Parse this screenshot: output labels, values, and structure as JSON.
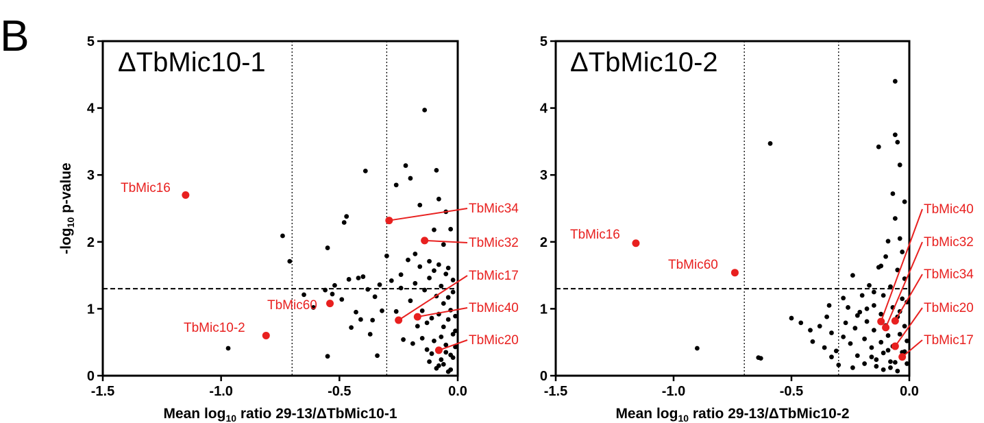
{
  "figure": {
    "panel_letter": "B"
  },
  "colors": {
    "points": "#000000",
    "highlight": "#e8201f",
    "axis": "#000000"
  },
  "chart_data": [
    {
      "type": "scatter",
      "title": "ΔTbMic10-1",
      "xlabel": "Mean log10 ratio 29-13/ΔTbMic10-1",
      "xlabel_parts": {
        "pre": "Mean log",
        "sub": "10",
        "post": " ratio 29-13/ΔTbMic10-1"
      },
      "ylabel": "-log10 p-value",
      "ylabel_parts": {
        "pre": "-log",
        "sub": "10",
        "post": " p-value"
      },
      "xlim": [
        -1.5,
        0.0
      ],
      "ylim": [
        0,
        5
      ],
      "xticks": [
        -1.5,
        -1.0,
        -0.5,
        0.0
      ],
      "xtick_labels": [
        "-1.5",
        "-1.0",
        "-0.5",
        "0.0"
      ],
      "yticks": [
        0,
        1,
        2,
        3,
        4,
        5
      ],
      "ytick_labels": [
        "0",
        "1",
        "2",
        "3",
        "4",
        "5"
      ],
      "threshold_lines": {
        "vertical": [
          -0.7,
          -0.3
        ],
        "horizontal": [
          1.3
        ]
      },
      "highlighted": [
        {
          "label": "TbMic16",
          "x": -1.15,
          "y": 2.7
        },
        {
          "label": "TbMic10-2",
          "x": -0.81,
          "y": 0.6
        },
        {
          "label": "TbMic60",
          "x": -0.54,
          "y": 1.08
        },
        {
          "label": "TbMic34",
          "x": -0.29,
          "y": 2.32
        },
        {
          "label": "TbMic32",
          "x": -0.14,
          "y": 2.02
        },
        {
          "label": "TbMic17",
          "x": -0.25,
          "y": 0.83
        },
        {
          "label": "TbMic40",
          "x": -0.17,
          "y": 0.88
        },
        {
          "label": "TbMic20",
          "x": -0.08,
          "y": 0.38
        }
      ],
      "background_points": [
        [
          -0.97,
          0.41
        ],
        [
          -0.74,
          2.09
        ],
        [
          -0.71,
          1.71
        ],
        [
          -0.65,
          1.21
        ],
        [
          -0.61,
          1.02
        ],
        [
          -0.56,
          1.28
        ],
        [
          -0.55,
          1.91
        ],
        [
          -0.55,
          0.29
        ],
        [
          -0.53,
          1.22
        ],
        [
          -0.52,
          1.35
        ],
        [
          -0.49,
          1.14
        ],
        [
          -0.48,
          2.29
        ],
        [
          -0.47,
          2.38
        ],
        [
          -0.46,
          1.44
        ],
        [
          -0.45,
          0.72
        ],
        [
          -0.43,
          0.95
        ],
        [
          -0.42,
          1.46
        ],
        [
          -0.41,
          0.84
        ],
        [
          -0.4,
          1.48
        ],
        [
          -0.39,
          3.06
        ],
        [
          -0.38,
          1.29
        ],
        [
          -0.37,
          0.62
        ],
        [
          -0.36,
          0.83
        ],
        [
          -0.35,
          1.18
        ],
        [
          -0.34,
          0.3
        ],
        [
          -0.33,
          1.36
        ],
        [
          -0.32,
          0.97
        ],
        [
          -0.3,
          1.79
        ],
        [
          -0.28,
          1.42
        ],
        [
          -0.26,
          2.85
        ],
        [
          -0.24,
          1.31
        ],
        [
          -0.22,
          3.14
        ],
        [
          -0.2,
          2.95
        ],
        [
          -0.18,
          1.82
        ],
        [
          -0.16,
          2.55
        ],
        [
          -0.14,
          3.97
        ],
        [
          -0.12,
          1.71
        ],
        [
          -0.1,
          2.18
        ],
        [
          -0.09,
          3.07
        ],
        [
          -0.08,
          2.64
        ],
        [
          -0.06,
          1.96
        ],
        [
          -0.05,
          2.45
        ],
        [
          -0.04,
          1.61
        ],
        [
          -0.03,
          2.19
        ],
        [
          -0.02,
          1.43
        ],
        [
          -0.01,
          0.67
        ],
        [
          -0.26,
          0.96
        ],
        [
          -0.24,
          1.51
        ],
        [
          -0.23,
          0.54
        ],
        [
          -0.21,
          1.73
        ],
        [
          -0.2,
          1.12
        ],
        [
          -0.19,
          0.48
        ],
        [
          -0.18,
          1.38
        ],
        [
          -0.17,
          0.74
        ],
        [
          -0.16,
          1.63
        ],
        [
          -0.15,
          0.97
        ],
        [
          -0.14,
          1.28
        ],
        [
          -0.13,
          0.39
        ],
        [
          -0.12,
          1.46
        ],
        [
          -0.11,
          0.86
        ],
        [
          -0.1,
          1.57
        ],
        [
          -0.1,
          0.52
        ],
        [
          -0.09,
          1.19
        ],
        [
          -0.08,
          0.92
        ],
        [
          -0.08,
          1.66
        ],
        [
          -0.07,
          0.24
        ],
        [
          -0.07,
          1.34
        ],
        [
          -0.06,
          0.73
        ],
        [
          -0.06,
          1.08
        ],
        [
          -0.05,
          0.46
        ],
        [
          -0.05,
          1.52
        ],
        [
          -0.04,
          0.84
        ],
        [
          -0.04,
          1.17
        ],
        [
          -0.03,
          0.31
        ],
        [
          -0.03,
          0.98
        ],
        [
          -0.02,
          0.62
        ],
        [
          -0.02,
          1.25
        ],
        [
          -0.01,
          0.43
        ],
        [
          -0.01,
          0.89
        ],
        [
          -0.06,
          0.17
        ],
        [
          -0.09,
          0.11
        ],
        [
          -0.12,
          0.21
        ],
        [
          -0.03,
          0.09
        ],
        [
          -0.15,
          0.56
        ],
        [
          -0.11,
          0.33
        ],
        [
          -0.04,
          0.06
        ],
        [
          -0.07,
          0.58
        ],
        [
          -0.13,
          0.79
        ],
        [
          -0.02,
          0.27
        ],
        [
          -0.05,
          0.35
        ],
        [
          -0.08,
          0.15
        ]
      ]
    },
    {
      "type": "scatter",
      "title": "ΔTbMic10-2",
      "xlabel": "Mean log10 ratio 29-13/ΔTbMic10-2",
      "xlabel_parts": {
        "pre": "Mean log",
        "sub": "10",
        "post": " ratio 29-13/ΔTbMic10-2"
      },
      "ylabel": "",
      "xlim": [
        -1.5,
        0.0
      ],
      "ylim": [
        0,
        5
      ],
      "xticks": [
        -1.5,
        -1.0,
        -0.5,
        0.0
      ],
      "xtick_labels": [
        "-1.5",
        "-1.0",
        "-0.5",
        "0.0"
      ],
      "yticks": [
        0,
        1,
        2,
        3,
        4,
        5
      ],
      "ytick_labels": [
        "0",
        "1",
        "2",
        "3",
        "4",
        "5"
      ],
      "threshold_lines": {
        "vertical": [
          -0.7,
          -0.3
        ],
        "horizontal": [
          1.3
        ]
      },
      "highlighted": [
        {
          "label": "TbMic16",
          "x": -1.16,
          "y": 1.98
        },
        {
          "label": "TbMic60",
          "x": -0.74,
          "y": 1.54
        },
        {
          "label": "TbMic40",
          "x": -0.12,
          "y": 0.81
        },
        {
          "label": "TbMic32",
          "x": -0.1,
          "y": 0.72
        },
        {
          "label": "TbMic34",
          "x": -0.06,
          "y": 0.82
        },
        {
          "label": "TbMic20",
          "x": -0.06,
          "y": 0.44
        },
        {
          "label": "TbMic17",
          "x": -0.03,
          "y": 0.28
        }
      ],
      "background_points": [
        [
          -0.9,
          0.41
        ],
        [
          -0.64,
          0.27
        ],
        [
          -0.63,
          0.26
        ],
        [
          -0.59,
          3.47
        ],
        [
          -0.5,
          0.86
        ],
        [
          -0.46,
          0.79
        ],
        [
          -0.42,
          0.68
        ],
        [
          -0.41,
          0.51
        ],
        [
          -0.38,
          0.74
        ],
        [
          -0.36,
          0.42
        ],
        [
          -0.35,
          0.88
        ],
        [
          -0.33,
          0.64
        ],
        [
          -0.31,
          0.37
        ],
        [
          -0.3,
          0.16
        ],
        [
          -0.28,
          0.58
        ],
        [
          -0.27,
          0.79
        ],
        [
          -0.26,
          1.02
        ],
        [
          -0.25,
          0.48
        ],
        [
          -0.24,
          1.5
        ],
        [
          -0.23,
          0.71
        ],
        [
          -0.22,
          0.3
        ],
        [
          -0.21,
          0.95
        ],
        [
          -0.2,
          1.2
        ],
        [
          -0.19,
          0.55
        ],
        [
          -0.18,
          0.81
        ],
        [
          -0.17,
          1.35
        ],
        [
          -0.16,
          0.42
        ],
        [
          -0.15,
          1.05
        ],
        [
          -0.15,
          0.68
        ],
        [
          -0.14,
          0.24
        ],
        [
          -0.13,
          3.42
        ],
        [
          -0.13,
          1.62
        ],
        [
          -0.12,
          0.92
        ],
        [
          -0.12,
          0.5
        ],
        [
          -0.11,
          1.2
        ],
        [
          -0.11,
          0.34
        ],
        [
          -0.1,
          0.75
        ],
        [
          -0.1,
          1.78
        ],
        [
          -0.09,
          2.01
        ],
        [
          -0.09,
          0.6
        ],
        [
          -0.08,
          1.33
        ],
        [
          -0.08,
          0.21
        ],
        [
          -0.07,
          2.72
        ],
        [
          -0.07,
          1.02
        ],
        [
          -0.07,
          0.44
        ],
        [
          -0.06,
          4.4
        ],
        [
          -0.06,
          3.6
        ],
        [
          -0.06,
          2.35
        ],
        [
          -0.05,
          3.49
        ],
        [
          -0.05,
          1.58
        ],
        [
          -0.05,
          0.88
        ],
        [
          -0.04,
          3.15
        ],
        [
          -0.04,
          2.05
        ],
        [
          -0.04,
          0.62
        ],
        [
          -0.03,
          1.85
        ],
        [
          -0.03,
          1.15
        ],
        [
          -0.03,
          0.35
        ],
        [
          -0.02,
          2.6
        ],
        [
          -0.02,
          1.45
        ],
        [
          -0.02,
          0.74
        ],
        [
          -0.01,
          1.1
        ],
        [
          -0.01,
          0.52
        ],
        [
          -0.14,
          0.14
        ],
        [
          -0.11,
          0.09
        ],
        [
          -0.08,
          0.12
        ],
        [
          -0.05,
          0.07
        ],
        [
          -0.19,
          0.18
        ],
        [
          -0.16,
          0.28
        ],
        [
          -0.24,
          0.12
        ],
        [
          -0.33,
          0.28
        ],
        [
          -0.09,
          0.38
        ],
        [
          -0.06,
          0.2
        ],
        [
          -0.01,
          0.18
        ],
        [
          -0.04,
          0.96
        ],
        [
          -0.12,
          1.64
        ],
        [
          -0.34,
          1.05
        ],
        [
          -0.28,
          1.16
        ],
        [
          -0.22,
          0.9
        ],
        [
          -0.18,
          1.0
        ],
        [
          -0.15,
          1.25
        ],
        [
          -0.02,
          0.36
        ]
      ]
    }
  ]
}
